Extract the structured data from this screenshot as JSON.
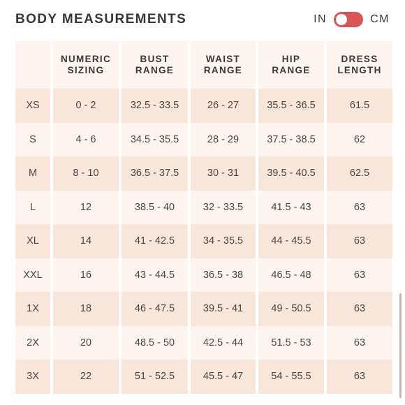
{
  "title": "BODY MEASUREMENTS",
  "unit_toggle": {
    "left_label": "IN",
    "right_label": "CM",
    "selected": "IN",
    "track_color": "#d95656"
  },
  "table": {
    "headers": [
      "",
      "NUMERIC\nSIZING",
      "BUST\nRANGE",
      "WAIST\nRANGE",
      "HIP\nRANGE",
      "DRESS\nLENGTH"
    ],
    "rows": [
      [
        "XS",
        "0 - 2",
        "32.5 - 33.5",
        "26 - 27",
        "35.5 - 36.5",
        "61.5"
      ],
      [
        "S",
        "4 - 6",
        "34.5 - 35.5",
        "28 - 29",
        "37.5 - 38.5",
        "62"
      ],
      [
        "M",
        "8 - 10",
        "36.5 - 37.5",
        "30 - 31",
        "39.5 - 40.5",
        "62.5"
      ],
      [
        "L",
        "12",
        "38.5 - 40",
        "32 - 33.5",
        "41.5 - 43",
        "63"
      ],
      [
        "XL",
        "14",
        "41 - 42.5",
        "34 - 35.5",
        "44 - 45.5",
        "63"
      ],
      [
        "XXL",
        "16",
        "43 - 44.5",
        "36.5 - 38",
        "46.5 - 48",
        "63"
      ],
      [
        "1X",
        "18",
        "46 - 47.5",
        "39.5 - 41",
        "49 - 50.5",
        "63"
      ],
      [
        "2X",
        "20",
        "48.5 - 50",
        "42.5 - 44",
        "51.5 - 53",
        "63"
      ],
      [
        "3X",
        "22",
        "51 - 52.5",
        "45.5 - 47",
        "54 - 55.5",
        "63"
      ]
    ],
    "colors": {
      "header_bg": "#fdf4ef",
      "odd_row_bg": "#f8e6da",
      "even_row_bg": "#fdf4ef"
    }
  }
}
